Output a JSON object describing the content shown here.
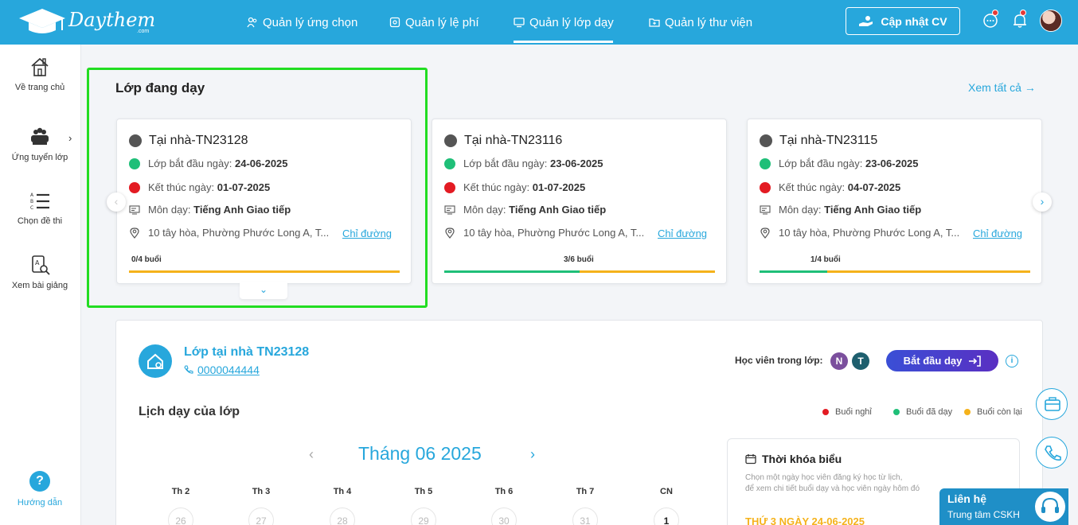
{
  "header": {
    "brand": "Daythem",
    "brand_suffix": ".com",
    "nav": [
      {
        "label": "Quản lý ứng chọn"
      },
      {
        "label": "Quản lý lệ phí"
      },
      {
        "label": "Quản lý lớp dạy"
      },
      {
        "label": "Quản lý thư viện"
      }
    ],
    "active_nav": "Quản lý lớp dạy",
    "cv_button": "Cập nhật CV"
  },
  "sidebar": {
    "items": [
      {
        "label": "Về trang chủ",
        "icon": "home-icon"
      },
      {
        "label": "Ứng tuyển lớp",
        "icon": "group-icon"
      },
      {
        "label": "Chọn đề thi",
        "icon": "list-icon"
      },
      {
        "label": "Xem bài giảng",
        "icon": "lecture-icon"
      }
    ],
    "help_label": "Hướng dẫn"
  },
  "current_classes": {
    "title": "Lớp đang dạy",
    "see_all": "Xem tất cả",
    "start_prefix": "Lớp bắt đầu ngày:",
    "end_prefix": "Kết thúc ngày:",
    "subject_prefix": "Môn dạy:",
    "map_link": "Chỉ đường",
    "cards": [
      {
        "title": "Tại nhà-TN23128",
        "start_date": "24-06-2025",
        "end_date": "01-07-2025",
        "subject": "Tiếng Anh Giao tiếp",
        "address": "10 tây hòa, Phường Phước Long A, T...",
        "sessions": "0/4 buổi",
        "progress": 0.0
      },
      {
        "title": "Tại nhà-TN23116",
        "start_date": "23-06-2025",
        "end_date": "01-07-2025",
        "subject": "Tiếng Anh Giao tiếp",
        "address": "10 tây hòa, Phường Phước Long A, T...",
        "sessions": "3/6 buổi",
        "progress": 0.5
      },
      {
        "title": "Tại nhà-TN23115",
        "start_date": "23-06-2025",
        "end_date": "04-07-2025",
        "subject": "Tiếng Anh Giao tiếp",
        "address": "10 tây hòa, Phường Phước Long A, T...",
        "sessions": "1/4 buổi",
        "progress": 0.25
      }
    ]
  },
  "detail": {
    "class_name": "Lớp tại nhà TN23128",
    "phone": "0000044444",
    "students_label": "Học viên trong lớp:",
    "students": [
      {
        "initial": "N",
        "color": "#7b4f9d"
      },
      {
        "initial": "T",
        "color": "#1e5f6e"
      }
    ],
    "start_button": "Bắt đầu dạy",
    "schedule_title": "Lịch dạy của lớp",
    "legend": [
      {
        "label": "Buổi nghỉ",
        "color": "#e31b23"
      },
      {
        "label": "Buổi đã dạy",
        "color": "#1fbf78"
      },
      {
        "label": "Buổi còn lại",
        "color": "#f5b21b"
      }
    ],
    "month": "Tháng 06 2025",
    "weekdays": [
      "Th 2",
      "Th 3",
      "Th 4",
      "Th 5",
      "Th 6",
      "Th 7",
      "CN"
    ],
    "days": [
      "26",
      "27",
      "28",
      "29",
      "30",
      "31",
      "1"
    ],
    "timetable_title": "Thời khóa biểu",
    "timetable_desc1": "Chọn một ngày học viên đăng ký học từ lịch,",
    "timetable_desc2": "để xem chi tiết buổi dạy và học viên ngày hôm đó",
    "timetable_date": "THỨ 3 NGÀY 24-06-2025"
  },
  "contact": {
    "title": "Liên hệ",
    "subtitle": "Trung tâm CSKH"
  },
  "colors": {
    "primary": "#27a7dc",
    "highlight": "#22dd22",
    "done": "#1fbf78",
    "remaining": "#f5b21b",
    "off": "#e31b23"
  }
}
